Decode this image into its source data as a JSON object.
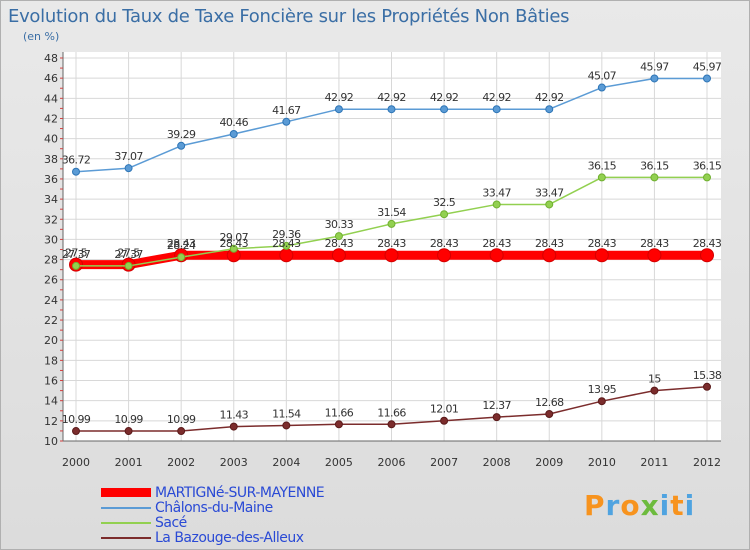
{
  "title": "Evolution du Taux de Taxe Foncière sur les Propriétés Non Bâties",
  "subtitle": "(en %)",
  "brand": {
    "letters": [
      "P",
      "r",
      "o",
      "x",
      "i",
      "t",
      "i"
    ],
    "colors": [
      "#f7931e",
      "#4fa3e0",
      "#f7931e",
      "#6dbb3e",
      "#4fa3e0",
      "#f7931e",
      "#4fa3e0"
    ]
  },
  "chart_data": {
    "type": "line",
    "title": "Evolution du Taux de Taxe Foncière sur les Propriétés Non Bâties",
    "ylabel": "(en %)",
    "x": [
      "2000",
      "2001",
      "2002",
      "2003",
      "2004",
      "2005",
      "2006",
      "2007",
      "2008",
      "2009",
      "2010",
      "2011",
      "2012"
    ],
    "ylim": [
      10,
      48
    ],
    "yticks": [
      "10",
      "12",
      "14",
      "16",
      "18",
      "20",
      "22",
      "24",
      "26",
      "28",
      "30",
      "32",
      "34",
      "36",
      "38",
      "40",
      "42",
      "44",
      "46",
      "48"
    ],
    "grid": true,
    "legend_position": "bottom-left",
    "series": [
      {
        "name": "MARTIGNé-SUR-MAYENNE",
        "color": "#ff0000",
        "marker": "#d40000",
        "width": 9,
        "values": [
          27.5,
          27.5,
          28.43,
          28.43,
          28.43,
          28.43,
          28.43,
          28.43,
          28.43,
          28.43,
          28.43,
          28.43,
          28.43
        ],
        "labels": [
          "27.5",
          "27.5",
          "28.43",
          "28.43",
          "28.43",
          "28.43",
          "28.43",
          "28.43",
          "28.43",
          "28.43",
          "28.43",
          "28.43",
          "28.43"
        ]
      },
      {
        "name": "Châlons-du-Maine",
        "color": "#5b9bd5",
        "marker": "#2e75b6",
        "width": 1.5,
        "values": [
          36.72,
          37.07,
          39.29,
          40.46,
          41.67,
          42.92,
          42.92,
          42.92,
          42.92,
          42.92,
          45.07,
          45.97,
          45.97
        ],
        "labels": [
          "36.72",
          "37.07",
          "39.29",
          "40.46",
          "41.67",
          "42.92",
          "42.92",
          "42.92",
          "42.92",
          "42.92",
          "45.07",
          "45.97",
          "45.97"
        ]
      },
      {
        "name": "Sacé",
        "color": "#92d050",
        "marker": "#70b030",
        "width": 1.5,
        "values": [
          27.37,
          27.37,
          28.24,
          29.07,
          29.36,
          30.33,
          31.54,
          32.5,
          33.47,
          33.47,
          36.15,
          36.15,
          36.15
        ],
        "labels": [
          "27.37",
          "27.37",
          "28.24",
          "29.07",
          "29.36",
          "30.33",
          "31.54",
          "32.5",
          "33.47",
          "33.47",
          "36.15",
          "36.15",
          "36.15"
        ]
      },
      {
        "name": "La Bazouge-des-Alleux",
        "color": "#7b2c2c",
        "marker": "#5a1a1a",
        "width": 1.5,
        "values": [
          10.99,
          10.99,
          10.99,
          11.43,
          11.54,
          11.66,
          11.66,
          12.01,
          12.37,
          12.68,
          13.95,
          15,
          15.38
        ],
        "labels": [
          "10.99",
          "10.99",
          "10.99",
          "11.43",
          "11.54",
          "11.66",
          "11.66",
          "12.01",
          "12.37",
          "12.68",
          "13.95",
          "15",
          "15.38"
        ]
      }
    ]
  }
}
